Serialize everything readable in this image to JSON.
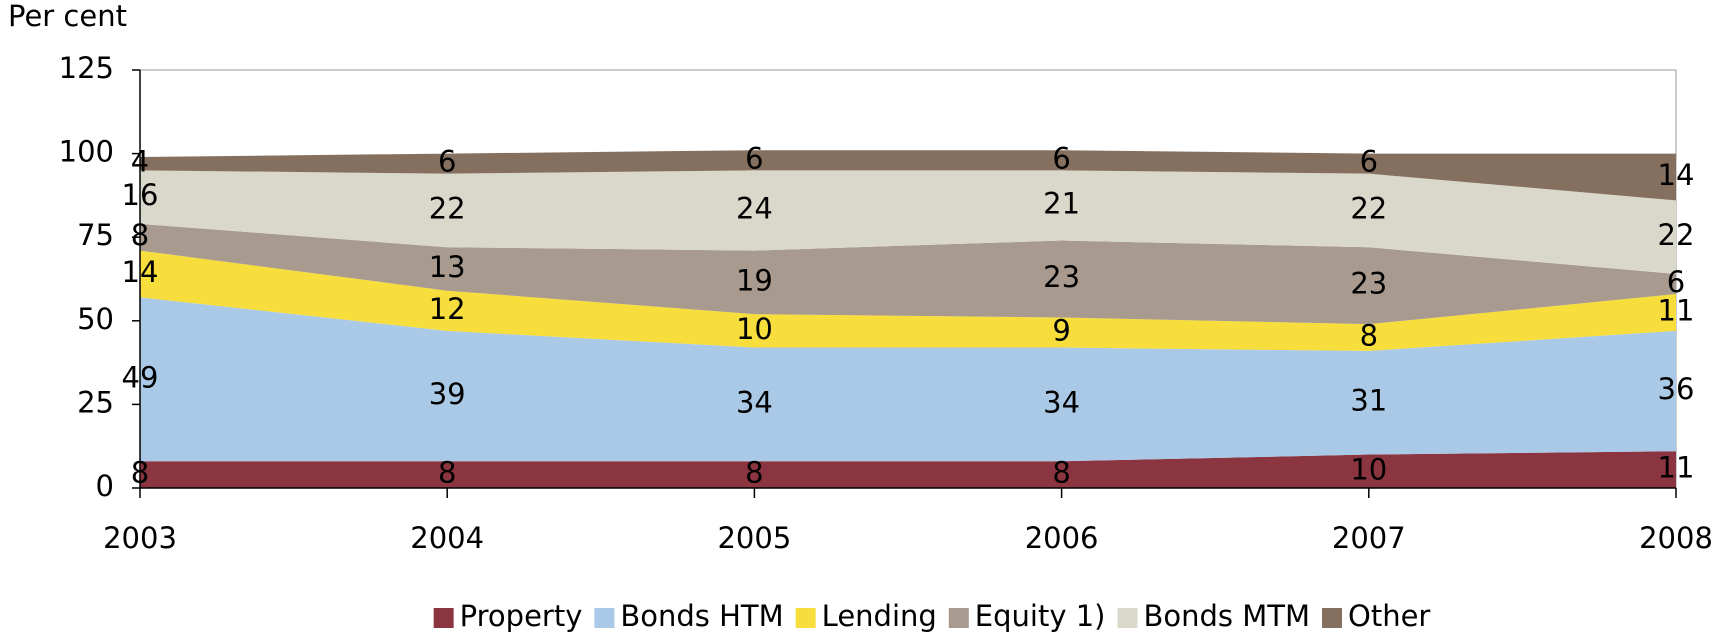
{
  "chart_data": {
    "type": "area",
    "stacked": true,
    "y_label": "Per cent",
    "categories": [
      "2003",
      "2004",
      "2005",
      "2006",
      "2007",
      "2008"
    ],
    "series": [
      {
        "name": "Property",
        "color": "#8b3540",
        "values": [
          8,
          8,
          8,
          8,
          10,
          11
        ]
      },
      {
        "name": "Bonds HTM",
        "color": "#a9c9e6",
        "values": [
          49,
          39,
          34,
          34,
          31,
          36
        ]
      },
      {
        "name": "Lending",
        "color": "#f7de3c",
        "values": [
          14,
          12,
          10,
          9,
          8,
          11
        ]
      },
      {
        "name": "Equity 1)",
        "color": "#a89a8e",
        "values": [
          8,
          13,
          19,
          23,
          23,
          6
        ]
      },
      {
        "name": "Bonds MTM",
        "color": "#dad8cb",
        "values": [
          16,
          22,
          24,
          21,
          22,
          22
        ]
      },
      {
        "name": "Other",
        "color": "#85705f",
        "values": [
          4,
          6,
          6,
          6,
          6,
          14
        ]
      }
    ],
    "ylim": [
      0,
      125
    ],
    "yticks": [
      0,
      25,
      50,
      75,
      100,
      125
    ],
    "legend": "bottom"
  }
}
